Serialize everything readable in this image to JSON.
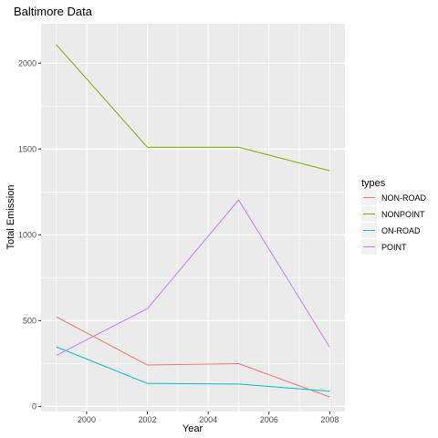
{
  "chart_data": {
    "type": "line",
    "title": "Baltimore Data",
    "xlabel": "Year",
    "ylabel": "Total Emission",
    "x": [
      1999,
      2002,
      2005,
      2008
    ],
    "xlim": [
      1998.5,
      2008.5
    ],
    "ylim": [
      -30,
      2230
    ],
    "x_ticks": [
      2000,
      2002,
      2004,
      2006,
      2008
    ],
    "y_ticks": [
      0,
      500,
      1000,
      1500,
      2000
    ],
    "grid": true,
    "legend": {
      "title": "types",
      "placement": "right"
    },
    "series": [
      {
        "name": "NON-ROAD",
        "color": "#F8766D",
        "values": [
          522,
          241,
          249,
          55
        ]
      },
      {
        "name": "NONPOINT",
        "color": "#7CAE00",
        "values": [
          2108,
          1510,
          1510,
          1373
        ]
      },
      {
        "name": "ON-ROAD",
        "color": "#00BFC4",
        "values": [
          347,
          134,
          130,
          88
        ]
      },
      {
        "name": "POINT",
        "color": "#C77CFF",
        "values": [
          297,
          570,
          1203,
          345
        ]
      }
    ]
  }
}
